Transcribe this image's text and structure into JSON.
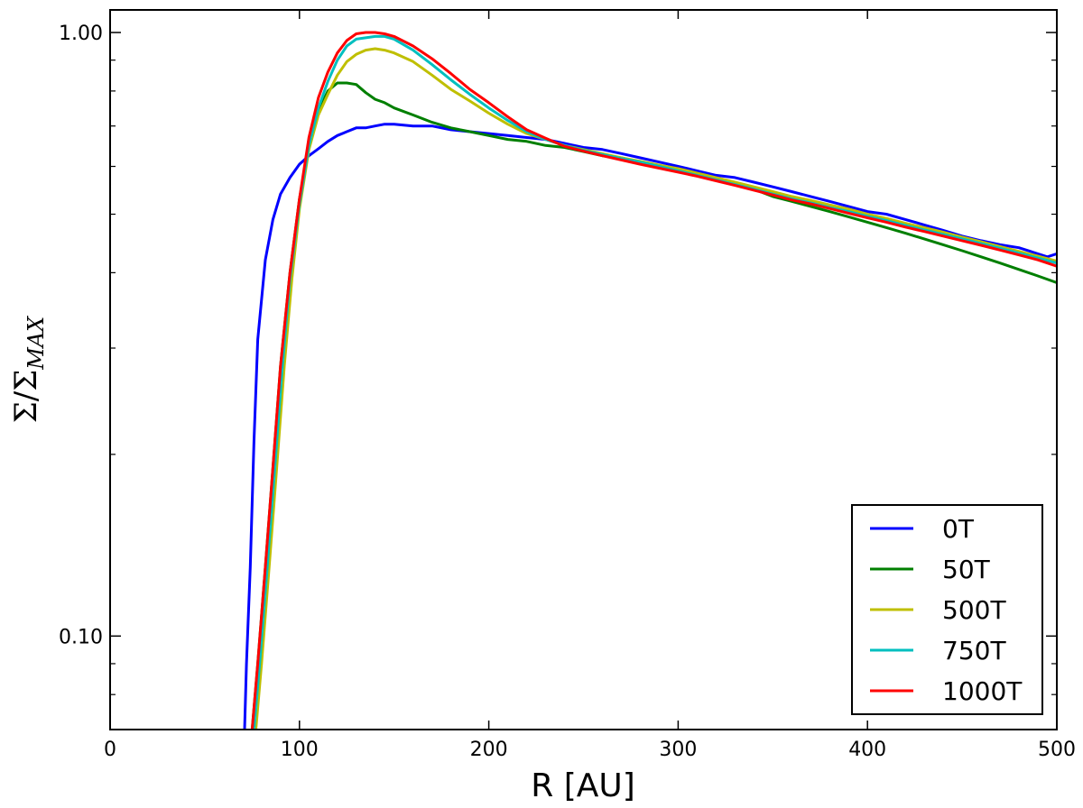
{
  "chart_data": {
    "type": "line",
    "xlabel": "R [AU]",
    "ylabel_main": "Σ/Σ",
    "ylabel_sub": "MAX",
    "xlim": [
      0,
      500
    ],
    "ylim": [
      0.07,
      1.09
    ],
    "yscale": "log",
    "grid": false,
    "legend_position": "lower-right",
    "x_ticks": [
      {
        "value": 0,
        "label": "0"
      },
      {
        "value": 100,
        "label": "100"
      },
      {
        "value": 200,
        "label": "200"
      },
      {
        "value": 300,
        "label": "300"
      },
      {
        "value": 400,
        "label": "400"
      },
      {
        "value": 500,
        "label": "500"
      }
    ],
    "y_ticks": [
      {
        "value": 0.1,
        "label": "0.10"
      },
      {
        "value": 1.0,
        "label": "1.00"
      }
    ],
    "series": [
      {
        "name": "0T",
        "color": "#0000ff",
        "x": [
          71,
          72,
          74,
          76,
          78,
          82,
          86,
          90,
          95,
          100,
          105,
          110,
          115,
          120,
          125,
          130,
          135,
          140,
          145,
          150,
          160,
          170,
          180,
          190,
          200,
          210,
          220,
          230,
          240,
          250,
          260,
          270,
          280,
          290,
          300,
          310,
          320,
          330,
          340,
          350,
          360,
          370,
          380,
          390,
          400,
          410,
          420,
          430,
          440,
          450,
          460,
          470,
          480,
          490,
          495,
          500
        ],
        "y": [
          0.07,
          0.09,
          0.13,
          0.21,
          0.31,
          0.42,
          0.49,
          0.54,
          0.575,
          0.605,
          0.625,
          0.642,
          0.66,
          0.675,
          0.685,
          0.695,
          0.695,
          0.7,
          0.705,
          0.705,
          0.7,
          0.7,
          0.69,
          0.685,
          0.68,
          0.675,
          0.67,
          0.665,
          0.655,
          0.645,
          0.64,
          0.63,
          0.62,
          0.61,
          0.6,
          0.59,
          0.58,
          0.575,
          0.565,
          0.555,
          0.545,
          0.535,
          0.525,
          0.515,
          0.505,
          0.5,
          0.49,
          0.48,
          0.47,
          0.46,
          0.452,
          0.445,
          0.44,
          0.43,
          0.425,
          0.43
        ]
      },
      {
        "name": "50T",
        "color": "#007f00",
        "x": [
          75,
          78,
          82,
          86,
          90,
          95,
          100,
          105,
          110,
          115,
          120,
          125,
          130,
          135,
          140,
          145,
          150,
          160,
          170,
          180,
          190,
          200,
          210,
          220,
          230,
          240,
          250,
          260,
          270,
          280,
          290,
          300,
          310,
          320,
          330,
          340,
          350,
          360,
          370,
          380,
          390,
          400,
          410,
          420,
          430,
          440,
          450,
          460,
          470,
          480,
          490,
          500
        ],
        "y": [
          0.07,
          0.09,
          0.13,
          0.19,
          0.28,
          0.4,
          0.53,
          0.65,
          0.74,
          0.8,
          0.825,
          0.825,
          0.82,
          0.795,
          0.775,
          0.765,
          0.75,
          0.73,
          0.71,
          0.695,
          0.685,
          0.675,
          0.665,
          0.66,
          0.65,
          0.645,
          0.635,
          0.625,
          0.62,
          0.61,
          0.6,
          0.59,
          0.58,
          0.57,
          0.56,
          0.55,
          0.535,
          0.525,
          0.515,
          0.505,
          0.495,
          0.485,
          0.475,
          0.465,
          0.455,
          0.445,
          0.435,
          0.425,
          0.415,
          0.405,
          0.395,
          0.385
        ]
      },
      {
        "name": "500T",
        "color": "#bfbf00",
        "x": [
          77,
          80,
          84,
          88,
          92,
          96,
          100,
          105,
          110,
          115,
          120,
          125,
          130,
          135,
          140,
          145,
          150,
          160,
          170,
          180,
          190,
          200,
          210,
          220,
          230,
          240,
          250,
          260,
          270,
          280,
          290,
          300,
          310,
          320,
          330,
          340,
          350,
          360,
          370,
          380,
          390,
          400,
          410,
          420,
          430,
          440,
          450,
          460,
          470,
          480,
          490,
          500
        ],
        "y": [
          0.07,
          0.09,
          0.13,
          0.19,
          0.28,
          0.39,
          0.51,
          0.64,
          0.73,
          0.79,
          0.85,
          0.895,
          0.92,
          0.935,
          0.94,
          0.935,
          0.925,
          0.895,
          0.85,
          0.805,
          0.77,
          0.735,
          0.705,
          0.68,
          0.665,
          0.65,
          0.64,
          0.63,
          0.62,
          0.612,
          0.603,
          0.595,
          0.585,
          0.575,
          0.565,
          0.555,
          0.545,
          0.535,
          0.527,
          0.518,
          0.51,
          0.5,
          0.492,
          0.483,
          0.475,
          0.467,
          0.458,
          0.45,
          0.442,
          0.434,
          0.426,
          0.418
        ]
      },
      {
        "name": "750T",
        "color": "#00bfbf",
        "x": [
          76,
          79,
          83,
          87,
          91,
          95,
          100,
          105,
          110,
          115,
          120,
          125,
          130,
          135,
          140,
          145,
          150,
          160,
          170,
          180,
          190,
          200,
          210,
          220,
          230,
          240,
          250,
          260,
          270,
          280,
          290,
          300,
          310,
          320,
          330,
          340,
          350,
          360,
          370,
          380,
          390,
          400,
          410,
          420,
          430,
          440,
          450,
          460,
          470,
          480,
          490,
          500
        ],
        "y": [
          0.07,
          0.09,
          0.13,
          0.19,
          0.28,
          0.39,
          0.52,
          0.65,
          0.75,
          0.83,
          0.9,
          0.95,
          0.975,
          0.98,
          0.985,
          0.985,
          0.975,
          0.935,
          0.885,
          0.835,
          0.79,
          0.75,
          0.715,
          0.685,
          0.665,
          0.65,
          0.638,
          0.628,
          0.618,
          0.61,
          0.6,
          0.59,
          0.58,
          0.57,
          0.56,
          0.55,
          0.54,
          0.53,
          0.522,
          0.513,
          0.505,
          0.496,
          0.488,
          0.479,
          0.471,
          0.463,
          0.455,
          0.447,
          0.439,
          0.431,
          0.423,
          0.415
        ]
      },
      {
        "name": "1000T",
        "color": "#ff0000",
        "x": [
          75,
          78,
          82,
          86,
          90,
          95,
          100,
          105,
          110,
          115,
          120,
          125,
          130,
          135,
          140,
          145,
          150,
          160,
          170,
          180,
          190,
          200,
          210,
          220,
          230,
          240,
          250,
          260,
          270,
          280,
          290,
          300,
          310,
          320,
          330,
          340,
          350,
          360,
          370,
          380,
          390,
          400,
          410,
          420,
          430,
          440,
          450,
          460,
          470,
          480,
          490,
          500
        ],
        "y": [
          0.07,
          0.09,
          0.13,
          0.19,
          0.28,
          0.4,
          0.53,
          0.67,
          0.78,
          0.86,
          0.925,
          0.97,
          0.995,
          1.0,
          1.0,
          0.995,
          0.985,
          0.95,
          0.905,
          0.855,
          0.805,
          0.765,
          0.725,
          0.69,
          0.668,
          0.648,
          0.636,
          0.625,
          0.615,
          0.605,
          0.596,
          0.587,
          0.578,
          0.568,
          0.558,
          0.548,
          0.538,
          0.528,
          0.52,
          0.511,
          0.502,
          0.493,
          0.485,
          0.476,
          0.468,
          0.46,
          0.452,
          0.444,
          0.436,
          0.428,
          0.42,
          0.41
        ]
      }
    ]
  }
}
